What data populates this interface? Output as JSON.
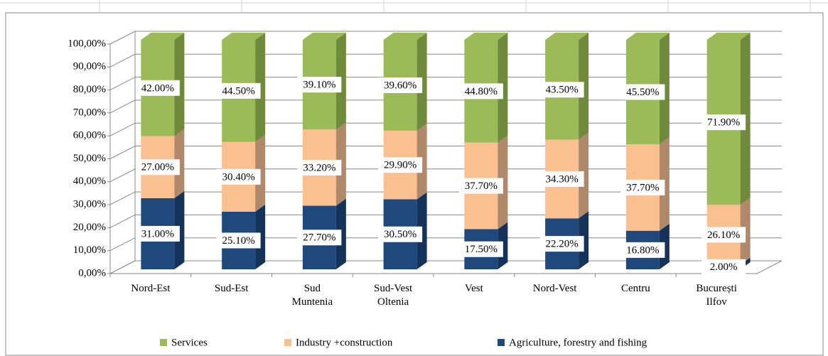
{
  "chart_data": {
    "type": "bar3d_stacked",
    "categories": [
      "Nord-Est",
      "Sud-Est",
      "Sud Muntenia",
      "Sud-Vest Oltenia",
      "Vest",
      "Nord-Vest",
      "Centru",
      "București Ilfov"
    ],
    "series": [
      {
        "name": "Agriculture, forestry and fishing",
        "color": "#1f497d",
        "side": "#14325a",
        "values": [
          31.0,
          25.1,
          27.7,
          30.5,
          17.5,
          22.2,
          16.8,
          2.0
        ],
        "value_labels": [
          "31.00%",
          "25.10%",
          "27.70%",
          "30.50%",
          "17.50%",
          "22.20%",
          "16.80%",
          "2.00%"
        ]
      },
      {
        "name": "Industry +construction",
        "color": "#fac090",
        "side": "#b0896a",
        "values": [
          27.0,
          30.4,
          33.2,
          29.9,
          37.7,
          34.3,
          37.7,
          26.1
        ],
        "value_labels": [
          "27.00%",
          "30.40%",
          "33.20%",
          "29.90%",
          "37.70%",
          "34.30%",
          "37.70%",
          "26.10%"
        ]
      },
      {
        "name": "Services",
        "color": "#9bbb59",
        "side": "#6f8a3a",
        "values": [
          42.0,
          44.5,
          39.1,
          39.6,
          44.8,
          43.5,
          45.5,
          71.9
        ],
        "value_labels": [
          "42.00%",
          "44.50%",
          "39.10%",
          "39.60%",
          "44.80%",
          "43.50%",
          "45.50%",
          "71.90%"
        ]
      }
    ],
    "ylim": [
      0,
      100
    ],
    "yticks": [
      {
        "value": 0,
        "label": "0,00%"
      },
      {
        "value": 10,
        "label": "10,00%"
      },
      {
        "value": 20,
        "label": "20,00%"
      },
      {
        "value": 30,
        "label": "30,00%"
      },
      {
        "value": 40,
        "label": "40,00%"
      },
      {
        "value": 50,
        "label": "50,00%"
      },
      {
        "value": 60,
        "label": "60,00%"
      },
      {
        "value": 70,
        "label": "70,00%"
      },
      {
        "value": 80,
        "label": "80,00%"
      },
      {
        "value": 90,
        "label": "90,00%"
      },
      {
        "value": 100,
        "label": "100,00%"
      }
    ],
    "grid": true,
    "legend": "bottom"
  }
}
